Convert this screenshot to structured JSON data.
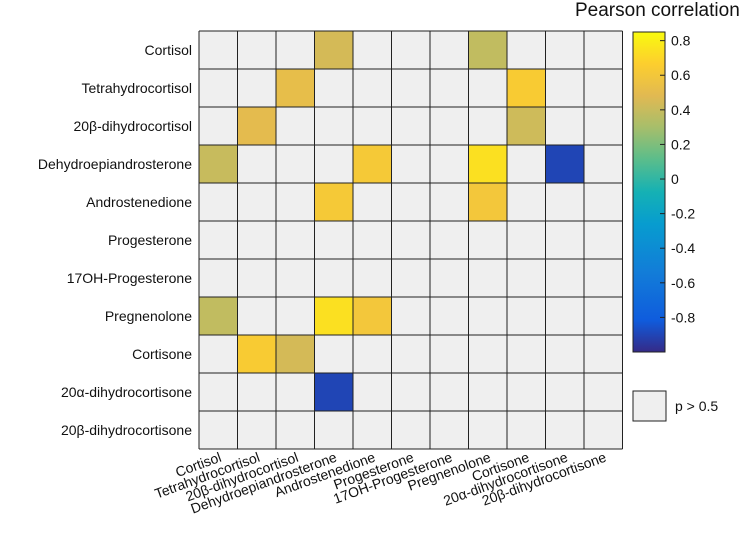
{
  "chart_data": {
    "type": "heatmap",
    "row_labels": [
      "Cortisol",
      "Tetrahydrocortisol",
      "20β-dihydrocortisol",
      "Dehydroepiandrosterone",
      "Androstenedione",
      "Progesterone",
      "17OH-Progesterone",
      "Pregnenolone",
      "Cortisone",
      "20α-dihydrocortisone",
      "20β-dihydrocortisone"
    ],
    "col_labels": [
      "Cortisol",
      "Tetrahydrocortisol",
      "20β-dihydrocortisol",
      "Dehydroepiandrosterone",
      "Androstenedione",
      "Progesterone",
      "17OH-Progesterone",
      "Pregnenolone",
      "Cortisone",
      "20α-dihydrocortisone",
      "20β-dihydrocortisone"
    ],
    "values": [
      [
        null,
        null,
        null,
        0.44,
        null,
        null,
        null,
        0.38,
        null,
        null,
        null
      ],
      [
        null,
        null,
        0.52,
        null,
        null,
        null,
        null,
        null,
        0.64,
        null,
        null
      ],
      [
        null,
        0.5,
        null,
        null,
        null,
        null,
        null,
        null,
        0.42,
        null,
        null
      ],
      [
        0.4,
        null,
        null,
        null,
        0.62,
        null,
        null,
        0.74,
        null,
        -0.9,
        null
      ],
      [
        null,
        null,
        null,
        0.62,
        null,
        null,
        null,
        0.6,
        null,
        null,
        null
      ],
      [
        null,
        null,
        null,
        null,
        null,
        null,
        null,
        null,
        null,
        null,
        null
      ],
      [
        null,
        null,
        null,
        null,
        null,
        null,
        null,
        null,
        null,
        null,
        null
      ],
      [
        0.38,
        null,
        null,
        0.74,
        0.6,
        null,
        null,
        null,
        null,
        null,
        null
      ],
      [
        null,
        0.64,
        0.44,
        null,
        null,
        null,
        null,
        null,
        null,
        null,
        null
      ],
      [
        null,
        null,
        null,
        -0.9,
        null,
        null,
        null,
        null,
        null,
        null,
        null
      ],
      [
        null,
        null,
        null,
        null,
        null,
        null,
        null,
        null,
        null,
        null,
        null
      ]
    ],
    "colorbar": {
      "title": "Pearson correlation",
      "range": [
        -1,
        0.85
      ],
      "ticks": [
        0.8,
        0.6,
        0.4,
        0.2,
        0,
        -0.2,
        -0.4,
        -0.6,
        -0.8
      ],
      "tick_labels": [
        "0.8",
        "0.6",
        "0.4",
        "0.2",
        "0",
        "-0.2",
        "-0.4",
        "-0.6",
        "-0.8"
      ],
      "colormap": "parula"
    },
    "na_legend": {
      "label": "p > 0.5",
      "color": "#efefef"
    },
    "grid": true
  }
}
